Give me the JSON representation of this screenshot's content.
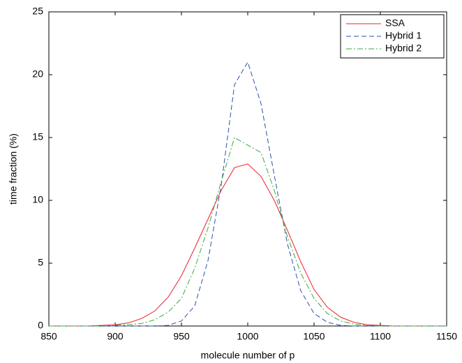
{
  "chart_data": {
    "type": "line",
    "xlabel": "molecule number of p",
    "ylabel": "time fraction (%)",
    "x": [
      850,
      860,
      870,
      880,
      890,
      900,
      910,
      920,
      930,
      940,
      950,
      960,
      970,
      980,
      990,
      1000,
      1010,
      1020,
      1030,
      1040,
      1050,
      1060,
      1070,
      1080,
      1090,
      1100,
      1110,
      1120,
      1130,
      1140,
      1150
    ],
    "series": [
      {
        "name": "SSA",
        "color": "#e8202a",
        "linestyle": "solid",
        "values": [
          0,
          0,
          0,
          0,
          0.05,
          0.1,
          0.25,
          0.6,
          1.2,
          2.3,
          4,
          6.2,
          8.5,
          10.8,
          12.6,
          12.9,
          11.9,
          10,
          7.6,
          5.1,
          2.9,
          1.5,
          0.7,
          0.3,
          0.1,
          0.05,
          0,
          0,
          0,
          0,
          0
        ]
      },
      {
        "name": "Hybrid 1",
        "color": "#2a4fa8",
        "linestyle": "dashed",
        "values": [
          0,
          0,
          0,
          0,
          0,
          0,
          0,
          0,
          0,
          0.05,
          0.4,
          1.6,
          5.2,
          11.2,
          19.2,
          21,
          17.7,
          12,
          6.5,
          2.8,
          1,
          0.3,
          0.05,
          0,
          0,
          0,
          0,
          0,
          0,
          0,
          0
        ]
      },
      {
        "name": "Hybrid 2",
        "color": "#3aa83a",
        "linestyle": "dashdot",
        "values": [
          0,
          0,
          0,
          0,
          0,
          0.05,
          0.1,
          0.2,
          0.5,
          1.1,
          2.2,
          4.6,
          7.8,
          11.5,
          15,
          14.4,
          13.8,
          10.8,
          7.1,
          4.2,
          2.2,
          1,
          0.4,
          0.15,
          0.05,
          0,
          0,
          0,
          0,
          0,
          0
        ]
      }
    ],
    "xlim": [
      850,
      1150
    ],
    "xticks": [
      850,
      900,
      950,
      1000,
      1050,
      1100,
      1150
    ],
    "ylim": [
      0,
      25
    ],
    "yticks": [
      0,
      5,
      10,
      15,
      20,
      25
    ],
    "grid": false,
    "legend_position": "upper-right"
  }
}
